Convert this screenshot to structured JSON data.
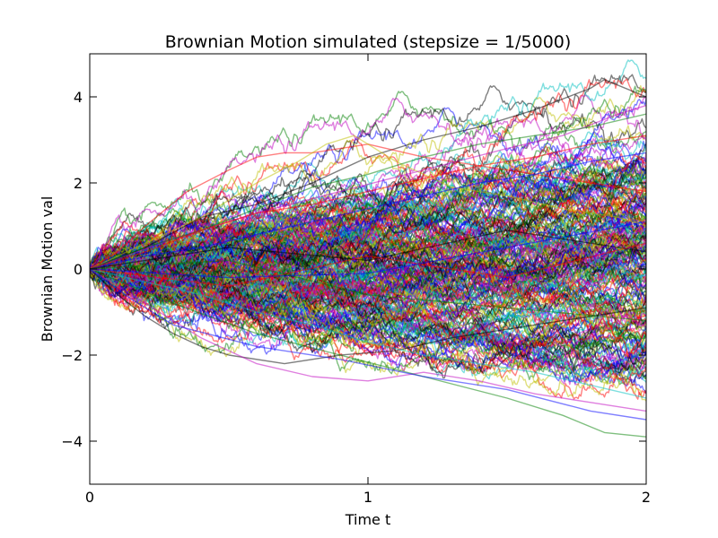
{
  "chart_data": {
    "type": "line",
    "title": "Brownian Motion simulated (stepsize = 1/5000)",
    "xlabel": "Time t",
    "ylabel": "Brownian Motion val",
    "xlim": [
      0,
      2
    ],
    "ylim": [
      -5,
      5
    ],
    "xticks": [
      {
        "value": 0,
        "label": "0"
      },
      {
        "value": 1,
        "label": "1"
      },
      {
        "value": 2,
        "label": "2"
      }
    ],
    "yticks": [
      {
        "value": 4,
        "label": "4"
      },
      {
        "value": 2,
        "label": "2"
      },
      {
        "value": 0,
        "label": "0"
      },
      {
        "value": -2,
        "label": "−2"
      },
      {
        "value": -4,
        "label": "−4"
      }
    ],
    "grid": false,
    "legend": "none",
    "stepsize": "1/5000",
    "colors": [
      "#0000ff",
      "#008000",
      "#ff0000",
      "#00bfbf",
      "#bf00bf",
      "#bfbf00",
      "#000000"
    ],
    "line_alpha": 0.5,
    "series": [
      {
        "color": "#000000",
        "x": [
          0,
          0.2,
          0.4,
          0.6,
          0.8,
          1.0,
          1.2,
          1.4,
          1.6,
          1.8,
          1.85,
          2.0
        ],
        "y": [
          0,
          0.5,
          1.2,
          1.5,
          2.0,
          2.6,
          3.0,
          3.3,
          3.7,
          4.2,
          4.4,
          4.0
        ]
      },
      {
        "color": "#ff0000",
        "x": [
          0,
          0.1,
          0.2,
          0.35,
          0.5,
          0.6,
          0.7,
          0.8,
          1.0,
          1.2,
          1.4,
          1.6,
          1.8,
          2.0
        ],
        "y": [
          0,
          0.4,
          1.0,
          1.8,
          2.3,
          2.6,
          2.7,
          2.7,
          2.9,
          2.6,
          2.4,
          2.2,
          2.0,
          1.8
        ]
      },
      {
        "color": "#bfbf00",
        "x": [
          0,
          0.2,
          0.4,
          0.6,
          0.75,
          0.85,
          0.95,
          1.1,
          1.3,
          1.5,
          1.7,
          1.9,
          2.0
        ],
        "y": [
          0,
          0.6,
          1.2,
          2.0,
          2.5,
          2.9,
          3.1,
          2.5,
          1.9,
          1.7,
          1.4,
          1.2,
          1.0
        ]
      },
      {
        "color": "#bf00bf",
        "x": [
          0,
          0.3,
          0.6,
          0.9,
          1.2,
          1.5,
          1.7,
          1.9,
          2.0
        ],
        "y": [
          0,
          0.7,
          1.3,
          1.8,
          2.3,
          2.8,
          3.1,
          3.6,
          3.8
        ]
      },
      {
        "color": "#008000",
        "x": [
          0,
          0.2,
          0.4,
          0.6,
          0.8,
          1.0,
          1.2,
          1.4,
          1.6,
          1.8,
          2.0
        ],
        "y": [
          0,
          0.5,
          0.9,
          1.4,
          1.9,
          2.2,
          2.6,
          2.9,
          3.1,
          3.3,
          3.6
        ]
      },
      {
        "color": "#000000",
        "x": [
          0,
          0.1,
          0.2,
          0.3,
          0.4,
          0.5,
          0.7,
          0.9,
          1.1,
          1.3,
          1.5,
          1.7,
          1.9,
          2.0
        ],
        "y": [
          0,
          -0.6,
          -1.1,
          -1.5,
          -1.8,
          -2.0,
          -2.2,
          -2.0,
          -1.9,
          -1.6,
          -1.4,
          -1.2,
          -1.0,
          -0.9
        ]
      },
      {
        "color": "#bf00bf",
        "x": [
          0,
          0.2,
          0.4,
          0.6,
          0.8,
          1.0,
          1.2,
          1.4,
          1.6,
          1.8,
          2.0
        ],
        "y": [
          0,
          -0.8,
          -1.6,
          -2.2,
          -2.5,
          -2.6,
          -2.4,
          -2.6,
          -2.9,
          -3.1,
          -3.3
        ]
      },
      {
        "color": "#008000",
        "x": [
          0,
          0.3,
          0.6,
          0.9,
          1.2,
          1.5,
          1.7,
          1.85,
          2.0
        ],
        "y": [
          0,
          -0.8,
          -1.5,
          -2.0,
          -2.5,
          -3.0,
          -3.4,
          -3.8,
          -3.9
        ]
      },
      {
        "color": "#0000ff",
        "x": [
          0,
          0.15,
          0.3,
          0.6,
          0.9,
          1.2,
          1.5,
          1.8,
          2.0
        ],
        "y": [
          0,
          -0.7,
          -1.3,
          -1.8,
          -2.1,
          -2.5,
          -2.8,
          -3.3,
          -3.5
        ]
      },
      {
        "color": "#ff0000",
        "x": [
          0,
          0.2,
          0.4,
          0.6,
          0.8,
          1.0,
          1.2,
          1.4,
          1.6,
          1.8,
          2.0
        ],
        "y": [
          0,
          0.4,
          0.9,
          1.3,
          1.5,
          1.8,
          2.1,
          2.4,
          2.6,
          2.9,
          3.1
        ]
      },
      {
        "color": "#0000ff",
        "x": [
          0,
          0.2,
          0.4,
          0.6,
          0.8,
          1.0,
          1.2,
          1.4,
          1.6,
          1.8,
          2.0
        ],
        "y": [
          0,
          0.3,
          0.5,
          0.8,
          1.1,
          1.4,
          1.7,
          2.0,
          2.2,
          2.5,
          2.7
        ]
      },
      {
        "color": "#00bfbf",
        "x": [
          0,
          0.2,
          0.4,
          0.6,
          0.8,
          1.0,
          1.2,
          1.4,
          1.6,
          1.8,
          2.0
        ],
        "y": [
          0,
          -0.3,
          -0.6,
          -1.0,
          -1.3,
          -1.7,
          -2.0,
          -2.2,
          -2.4,
          -2.7,
          -3.0
        ]
      },
      {
        "color": "#000000",
        "x": [
          0,
          0.5,
          1.0,
          1.5,
          2.0
        ],
        "y": [
          0,
          0.5,
          0.2,
          0.9,
          0.4
        ]
      },
      {
        "color": "#ff0000",
        "x": [
          0,
          0.5,
          1.0,
          1.5,
          2.0
        ],
        "y": [
          0,
          -0.4,
          0.3,
          -0.2,
          0.6
        ]
      },
      {
        "color": "#008000",
        "x": [
          0,
          0.5,
          1.0,
          1.5,
          2.0
        ],
        "y": [
          0,
          0.2,
          -0.6,
          -0.9,
          -1.2
        ]
      },
      {
        "color": "#0000ff",
        "x": [
          0,
          0.5,
          1.0,
          1.5,
          2.0
        ],
        "y": [
          0,
          -0.2,
          -0.1,
          0.5,
          1.1
        ]
      }
    ]
  }
}
